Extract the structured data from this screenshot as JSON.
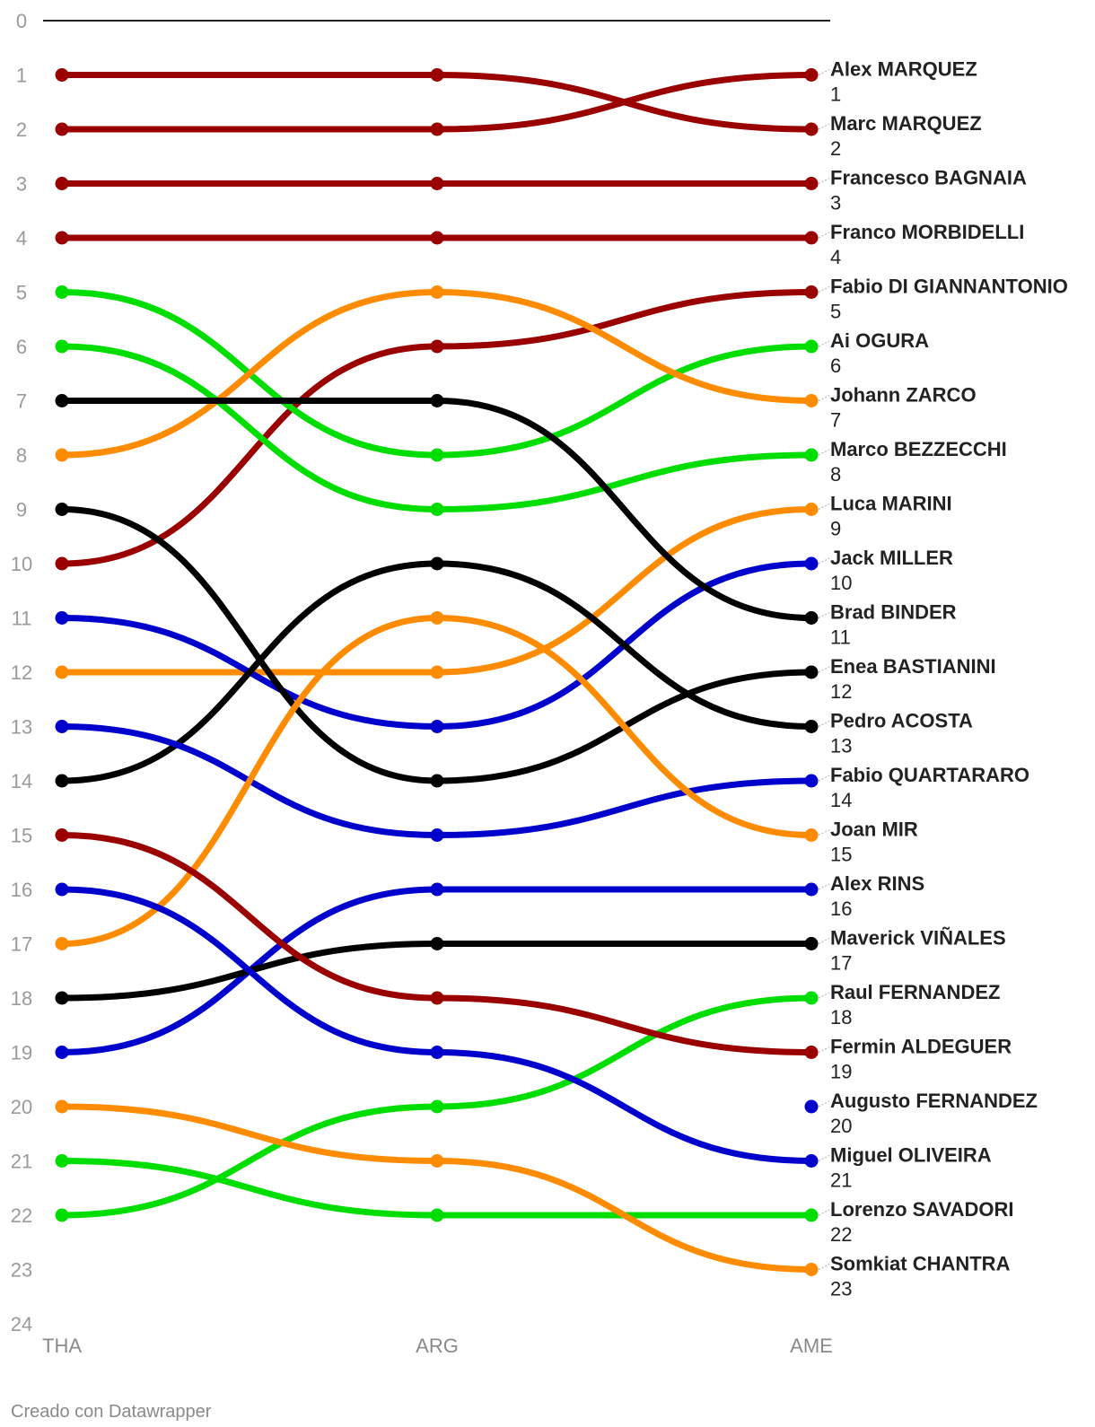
{
  "chart_data": {
    "type": "line",
    "x": [
      "THA",
      "ARG",
      "AME"
    ],
    "ylim": [
      0,
      24
    ],
    "y_reversed": true,
    "yticks": [
      "0",
      "1",
      "2",
      "3",
      "4",
      "5",
      "6",
      "7",
      "8",
      "9",
      "10",
      "11",
      "12",
      "13",
      "14",
      "15",
      "16",
      "17",
      "18",
      "19",
      "20",
      "21",
      "22",
      "23",
      "24"
    ],
    "series": [
      {
        "name": "Alex MARQUEZ",
        "color": "#9b0000",
        "values": [
          2,
          2,
          1
        ]
      },
      {
        "name": "Marc MARQUEZ",
        "color": "#9b0000",
        "values": [
          1,
          1,
          2
        ]
      },
      {
        "name": "Francesco BAGNAIA",
        "color": "#9b0000",
        "values": [
          3,
          3,
          3
        ]
      },
      {
        "name": "Franco MORBIDELLI",
        "color": "#9b0000",
        "values": [
          4,
          4,
          4
        ]
      },
      {
        "name": "Fabio DI GIANNANTONIO",
        "color": "#9b0000",
        "values": [
          10,
          6,
          5
        ]
      },
      {
        "name": "Ai OGURA",
        "color": "#00dd00",
        "values": [
          5,
          8,
          6
        ]
      },
      {
        "name": "Johann ZARCO",
        "color": "#ff8c00",
        "values": [
          8,
          5,
          7
        ]
      },
      {
        "name": "Marco BEZZECCHI",
        "color": "#00dd00",
        "values": [
          6,
          9,
          8
        ]
      },
      {
        "name": "Luca MARINI",
        "color": "#ff8c00",
        "values": [
          12,
          12,
          9
        ]
      },
      {
        "name": "Jack MILLER",
        "color": "#0000cc",
        "values": [
          11,
          13,
          10
        ]
      },
      {
        "name": "Brad BINDER",
        "color": "#000000",
        "values": [
          7,
          7,
          11
        ]
      },
      {
        "name": "Enea BASTIANINI",
        "color": "#000000",
        "values": [
          9,
          14,
          12
        ]
      },
      {
        "name": "Pedro ACOSTA",
        "color": "#000000",
        "values": [
          14,
          10,
          13
        ]
      },
      {
        "name": "Fabio QUARTARARO",
        "color": "#0000cc",
        "values": [
          13,
          15,
          14
        ]
      },
      {
        "name": "Joan MIR",
        "color": "#ff8c00",
        "values": [
          17,
          11,
          15
        ]
      },
      {
        "name": "Alex RINS",
        "color": "#0000cc",
        "values": [
          19,
          16,
          16
        ]
      },
      {
        "name": "Maverick VIÑALES",
        "color": "#000000",
        "values": [
          18,
          17,
          17
        ]
      },
      {
        "name": "Raul FERNANDEZ",
        "color": "#00dd00",
        "values": [
          22,
          20,
          18
        ]
      },
      {
        "name": "Fermin ALDEGUER",
        "color": "#9b0000",
        "values": [
          15,
          18,
          19
        ]
      },
      {
        "name": "Augusto FERNANDEZ",
        "color": "#0000cc",
        "values": [
          null,
          null,
          20
        ]
      },
      {
        "name": "Miguel OLIVEIRA",
        "color": "#0000cc",
        "values": [
          16,
          19,
          21
        ]
      },
      {
        "name": "Lorenzo SAVADORI",
        "color": "#00dd00",
        "values": [
          21,
          22,
          22
        ]
      },
      {
        "name": "Somkiat CHANTRA",
        "color": "#ff8c00",
        "values": [
          20,
          21,
          23
        ]
      }
    ]
  },
  "footer": {
    "credit": "Creado con Datawrapper"
  }
}
